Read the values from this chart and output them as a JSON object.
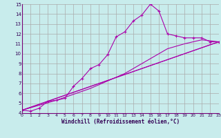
{
  "xlabel": "Windchill (Refroidissement éolien,°C)",
  "ylabel": "",
  "xlim": [
    0,
    23
  ],
  "ylim": [
    4,
    15
  ],
  "xticks": [
    0,
    1,
    2,
    3,
    4,
    5,
    6,
    7,
    8,
    9,
    10,
    11,
    12,
    13,
    14,
    15,
    16,
    17,
    18,
    19,
    20,
    21,
    22,
    23
  ],
  "yticks": [
    4,
    5,
    6,
    7,
    8,
    9,
    10,
    11,
    12,
    13,
    14,
    15
  ],
  "bg_color": "#c8ecec",
  "grid_color": "#aaaaaa",
  "line_color": "#aa00aa",
  "lines": [
    {
      "x": [
        0,
        1,
        2,
        3,
        4,
        5,
        6,
        7,
        8,
        9,
        10,
        11,
        12,
        13,
        14,
        15,
        16,
        17,
        18,
        19,
        20,
        21,
        22,
        23
      ],
      "y": [
        4.3,
        4.2,
        4.5,
        5.2,
        5.3,
        5.5,
        6.7,
        7.5,
        8.5,
        8.9,
        9.9,
        11.7,
        12.2,
        13.3,
        13.9,
        15.0,
        14.3,
        12.0,
        11.8,
        11.6,
        11.6,
        11.6,
        11.2,
        11.2
      ],
      "marker": true
    },
    {
      "x": [
        0,
        23
      ],
      "y": [
        4.3,
        11.2
      ],
      "marker": false
    },
    {
      "x": [
        0,
        23
      ],
      "y": [
        4.3,
        11.2
      ],
      "marker": false
    },
    {
      "x": [
        0,
        4,
        8,
        12,
        15,
        17,
        19,
        21,
        23
      ],
      "y": [
        4.3,
        5.3,
        6.5,
        8.0,
        9.5,
        10.5,
        11.0,
        11.4,
        11.2
      ],
      "marker": false
    }
  ]
}
